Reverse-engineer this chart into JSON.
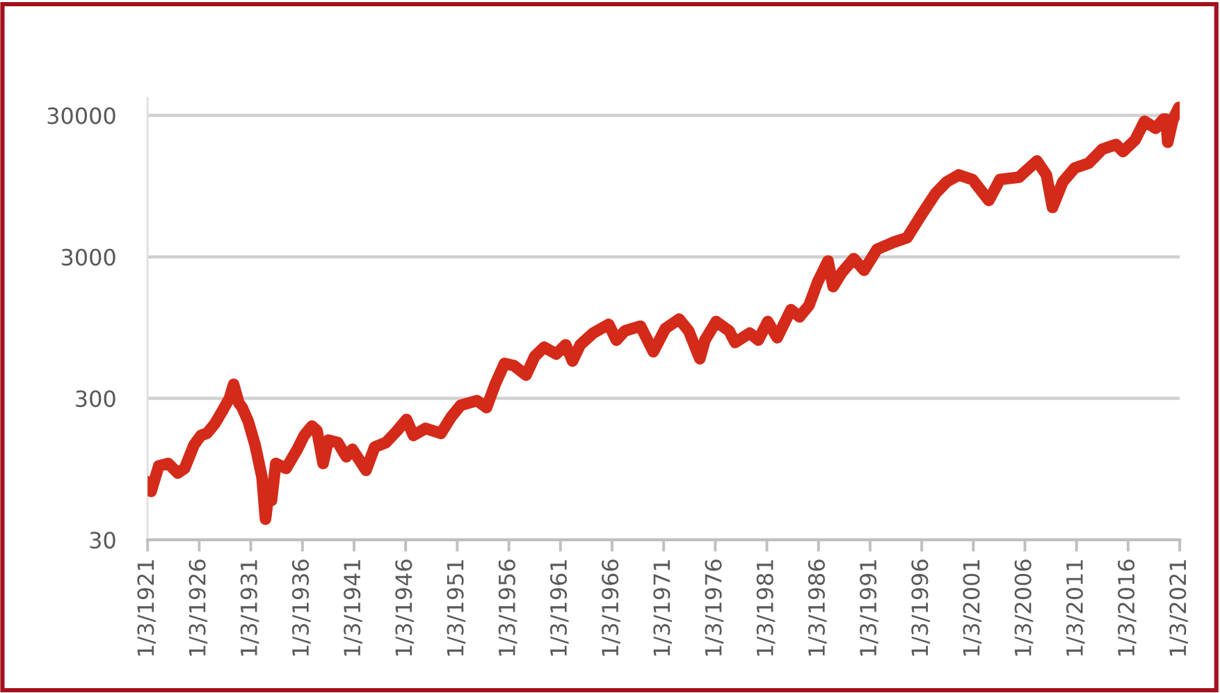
{
  "chart_data": {
    "type": "line",
    "color": "#d42a1a",
    "line_style": "solid",
    "log": "y",
    "grid": "y",
    "ylim": [
      30,
      40000
    ],
    "yticks": [
      30,
      300,
      3000,
      30000
    ],
    "xlim": [
      "1921-03-01",
      "2021-03-01"
    ],
    "xticks": [
      {
        "value": "1921-03-01",
        "label": "1/3/1921"
      },
      {
        "value": "1926-03-01",
        "label": "1/3/1926"
      },
      {
        "value": "1931-03-01",
        "label": "1/3/1931"
      },
      {
        "value": "1936-03-01",
        "label": "1/3/1936"
      },
      {
        "value": "1941-03-01",
        "label": "1/3/1941"
      },
      {
        "value": "1946-03-01",
        "label": "1/3/1946"
      },
      {
        "value": "1951-03-01",
        "label": "1/3/1951"
      },
      {
        "value": "1956-03-01",
        "label": "1/3/1956"
      },
      {
        "value": "1961-03-01",
        "label": "1/3/1961"
      },
      {
        "value": "1966-03-01",
        "label": "1/3/1966"
      },
      {
        "value": "1971-03-01",
        "label": "1/3/1971"
      },
      {
        "value": "1976-03-01",
        "label": "1/3/1976"
      },
      {
        "value": "1981-03-01",
        "label": "1/3/1981"
      },
      {
        "value": "1986-03-01",
        "label": "1/3/1986"
      },
      {
        "value": "1991-03-01",
        "label": "1/3/1991"
      },
      {
        "value": "1996-03-01",
        "label": "1/3/1996"
      },
      {
        "value": "2001-03-01",
        "label": "1/3/2001"
      },
      {
        "value": "2006-03-01",
        "label": "1/3/2006"
      },
      {
        "value": "2011-03-01",
        "label": "1/3/2011"
      },
      {
        "value": "2016-03-01",
        "label": "1/3/2016"
      },
      {
        "value": "2021-03-01",
        "label": "1/3/2021"
      }
    ],
    "x": [
      "1921-03",
      "1921-07",
      "1922-04",
      "1923-03",
      "1924-02",
      "1924-10",
      "1925-09",
      "1926-05",
      "1926-12",
      "1927-09",
      "1928-05",
      "1929-02",
      "1929-07",
      "1930-01",
      "1930-05",
      "1930-12",
      "1931-08",
      "1932-04",
      "1932-08",
      "1932-12",
      "1933-03",
      "1933-08",
      "1934-08",
      "1935-09",
      "1936-05",
      "1937-02",
      "1937-08",
      "1938-03",
      "1938-09",
      "1939-08",
      "1940-06",
      "1941-01",
      "1942-05",
      "1943-03",
      "1944-04",
      "1945-05",
      "1946-04",
      "1946-12",
      "1948-02",
      "1949-08",
      "1950-08",
      "1951-07",
      "1953-02",
      "1954-01",
      "1954-11",
      "1955-10",
      "1956-09",
      "1957-11",
      "1958-09",
      "1959-08",
      "1960-10",
      "1961-09",
      "1962-05",
      "1963-02",
      "1964-05",
      "1965-11",
      "1966-08",
      "1967-06",
      "1968-12",
      "1970-03",
      "1971-05",
      "1972-09",
      "1973-08",
      "1974-09",
      "1975-03",
      "1976-04",
      "1977-07",
      "1978-02",
      "1979-07",
      "1980-05",
      "1981-04",
      "1982-03",
      "1983-07",
      "1984-05",
      "1985-04",
      "1986-02",
      "1987-02",
      "1987-08",
      "1988-06",
      "1989-08",
      "1990-08",
      "1991-11",
      "1993-06",
      "1994-10",
      "1996-03",
      "1997-07",
      "1998-08",
      "1999-10",
      "2001-02",
      "2002-09",
      "2003-10",
      "2005-08",
      "2007-05",
      "2008-04",
      "2008-11",
      "2009-11",
      "2011-01",
      "2012-05",
      "2013-09",
      "2015-01",
      "2015-09",
      "2016-11",
      "2017-10",
      "2018-11",
      "2019-08",
      "2019-11",
      "2020-01",
      "2020-07",
      "2021-02"
    ],
    "values": [
      77,
      66,
      100,
      104,
      89,
      96,
      141,
      164,
      170,
      198,
      239,
      300,
      377,
      278,
      258,
      206,
      140,
      83,
      42,
      66,
      57,
      104,
      96,
      131,
      164,
      191,
      177,
      104,
      152,
      146,
      116,
      131,
      93,
      136,
      146,
      177,
      213,
      164,
      184,
      170,
      222,
      268,
      289,
      258,
      377,
      530,
      510,
      438,
      594,
      690,
      617,
      718,
      551,
      718,
      867,
      1000,
      774,
      901,
      971,
      641,
      936,
      1089,
      901,
      572,
      774,
      1047,
      901,
      745,
      867,
      774,
      1047,
      805,
      1269,
      1131,
      1366,
      1995,
      2808,
      1849,
      2319,
      2913,
      2412,
      3390,
      3802,
      4097,
      5988,
      8420,
      10170,
      11380,
      10560,
      7518,
      10560,
      10970,
      14290,
      11380,
      6705,
      10170,
      12770,
      13780,
      17310,
      18660,
      16650,
      20100,
      27250,
      24330,
      28270,
      28270,
      19380,
      28000,
      34200
    ]
  }
}
